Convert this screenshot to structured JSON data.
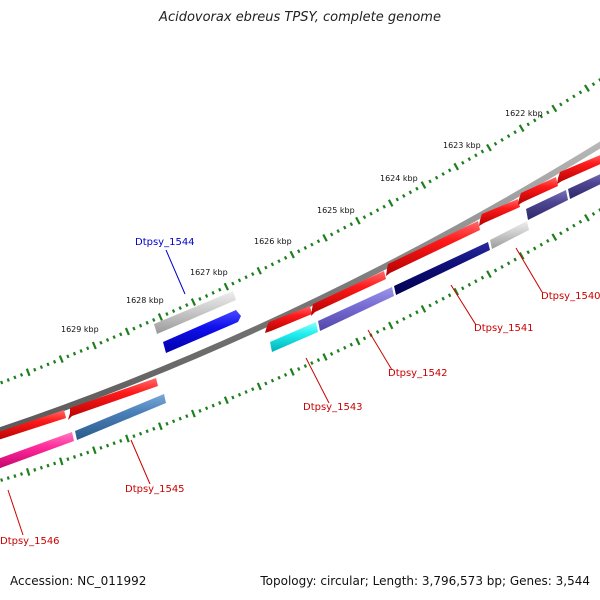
{
  "title": "Acidovorax ebreus TPSY, complete genome",
  "footer": {
    "accession": "Accession: NC_011992",
    "summary": "Topology: circular; Length: 3,796,573 bp; Genes: 3,544"
  },
  "colors": {
    "backbone": "#808080",
    "ruler_ticks": "#1f7f1f",
    "gene_label_forward": "#cc0000",
    "gene_label_reverse": "#0000cc"
  },
  "ruler_labels": [
    "1622 kbp",
    "1623 kbp",
    "1624 kbp",
    "1625 kbp",
    "1626 kbp",
    "1627 kbp",
    "1628 kbp",
    "1629 kbp"
  ],
  "gene_labels": [
    {
      "name": "Dtpsy_1540",
      "strand": "forward"
    },
    {
      "name": "Dtpsy_1541",
      "strand": "forward"
    },
    {
      "name": "Dtpsy_1542",
      "strand": "forward"
    },
    {
      "name": "Dtpsy_1543",
      "strand": "forward"
    },
    {
      "name": "Dtpsy_1544",
      "strand": "reverse"
    },
    {
      "name": "Dtpsy_1545",
      "strand": "forward"
    },
    {
      "name": "Dtpsy_1546",
      "strand": "forward"
    }
  ]
}
